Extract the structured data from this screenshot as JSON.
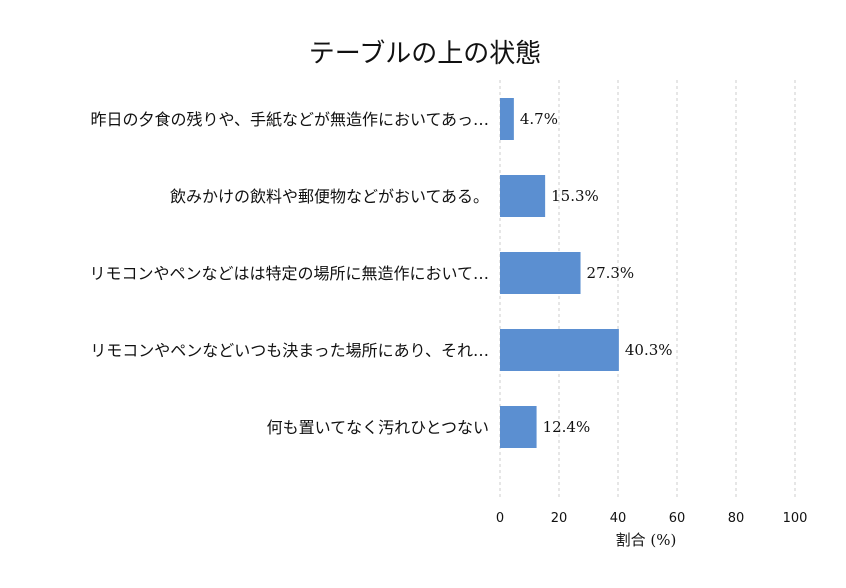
{
  "chart_data": {
    "type": "bar",
    "orientation": "horizontal",
    "title": "テーブルの上の状態",
    "xlabel": "割合 (%)",
    "ylabel": "",
    "xlim": [
      0,
      100
    ],
    "xticks": [
      "0",
      "20",
      "40",
      "60",
      "80",
      "100"
    ],
    "grid": true,
    "bar_color": "#5b8fd1",
    "categories": [
      "昨日の夕食の残りや、手紙などが無造作においてあっ…",
      "飲みかけの飲料や郵便物などがおいてある。",
      "リモコンやペンなどはは特定の場所に無造作において…",
      "リモコンやペンなどいつも決まった場所にあり、それ…",
      "何も置いてなく汚れひとつない"
    ],
    "values": [
      4.7,
      15.3,
      27.3,
      40.3,
      12.4
    ],
    "value_labels": [
      "4.7%",
      "15.3%",
      "27.3%",
      "40.3%",
      "12.4%"
    ]
  }
}
